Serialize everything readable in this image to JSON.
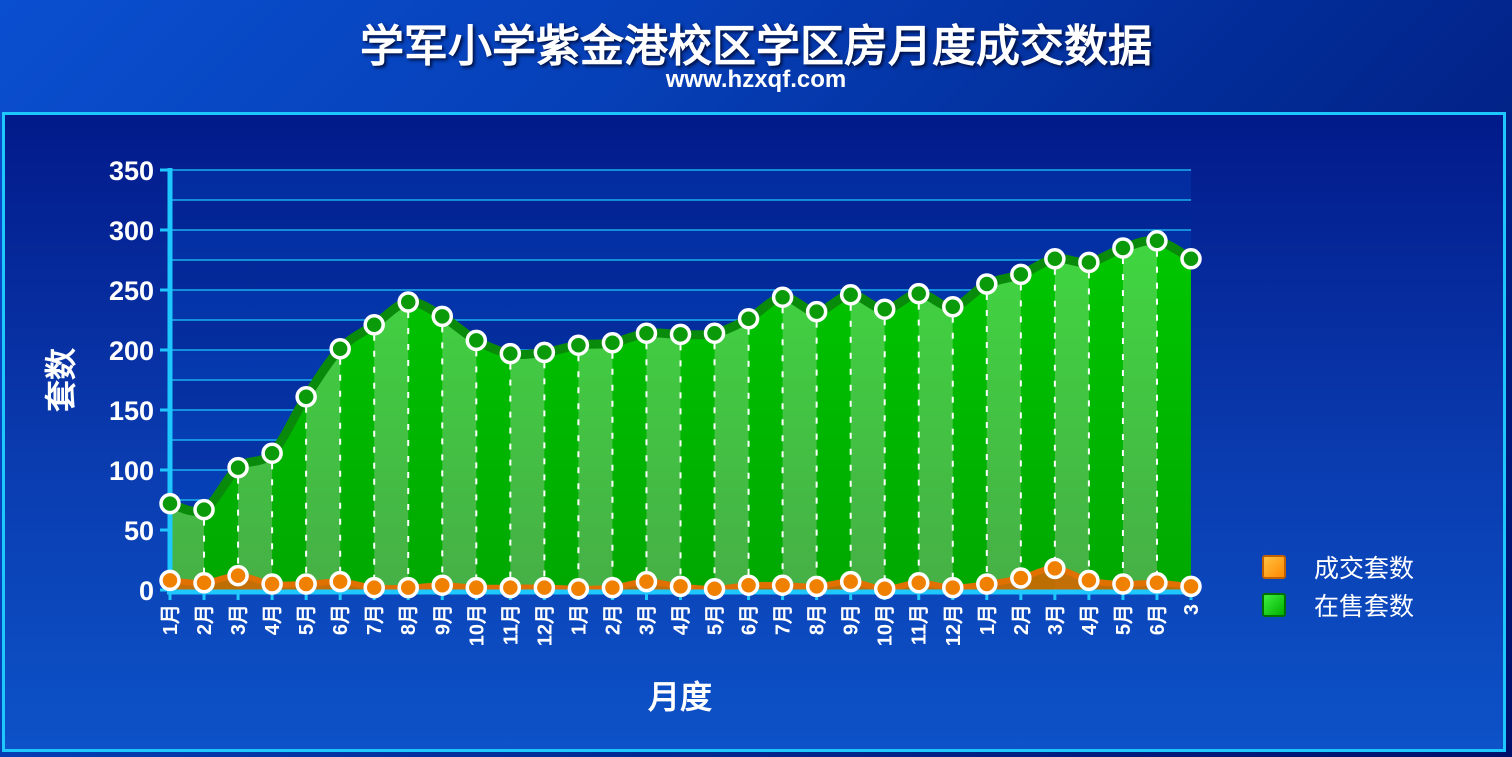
{
  "header": {
    "title": "学军小学紫金港校区学区房月度成交数据",
    "subtitle": "www.hzxqf.com"
  },
  "legend": {
    "deal_label": "成交套数",
    "sale_label": "在售套数"
  },
  "colors": {
    "sale_fill": "#1ed620",
    "sale_line": "#0a8a0a",
    "deal_fill": "#ff8a00",
    "deal_line": "#e07000",
    "grid": "#1ec8ff",
    "axis": "#1ec8ff"
  },
  "chart_data": {
    "type": "area",
    "xlabel": "月度",
    "ylabel": "套数",
    "ylim": [
      0,
      350
    ],
    "yticks": [
      0,
      50,
      100,
      150,
      200,
      250,
      300,
      350
    ],
    "grid": true,
    "legend_position": "right",
    "categories": [
      "1月",
      "2月",
      "3月",
      "4月",
      "5月",
      "6月",
      "7月",
      "8月",
      "9月",
      "10月",
      "11月",
      "12月",
      "1月",
      "2月",
      "3月",
      "4月",
      "5月",
      "6月",
      "7月",
      "8月",
      "9月",
      "10月",
      "11月",
      "12月",
      "1月",
      "2月",
      "3月",
      "4月",
      "5月",
      "6月",
      "3"
    ],
    "series": [
      {
        "name": "成交套数",
        "values": [
          8,
          6,
          12,
          5,
          5,
          7,
          2,
          2,
          4,
          2,
          2,
          2,
          1,
          2,
          7,
          3,
          1,
          4,
          4,
          3,
          7,
          1,
          6,
          2,
          5,
          10,
          18,
          8,
          5,
          6,
          3
        ]
      },
      {
        "name": "在售套数",
        "values": [
          72,
          67,
          102,
          114,
          161,
          201,
          221,
          240,
          228,
          208,
          197,
          198,
          204,
          206,
          214,
          213,
          214,
          226,
          244,
          232,
          246,
          234,
          247,
          236,
          255,
          263,
          276,
          273,
          285,
          291,
          276
        ]
      }
    ]
  }
}
